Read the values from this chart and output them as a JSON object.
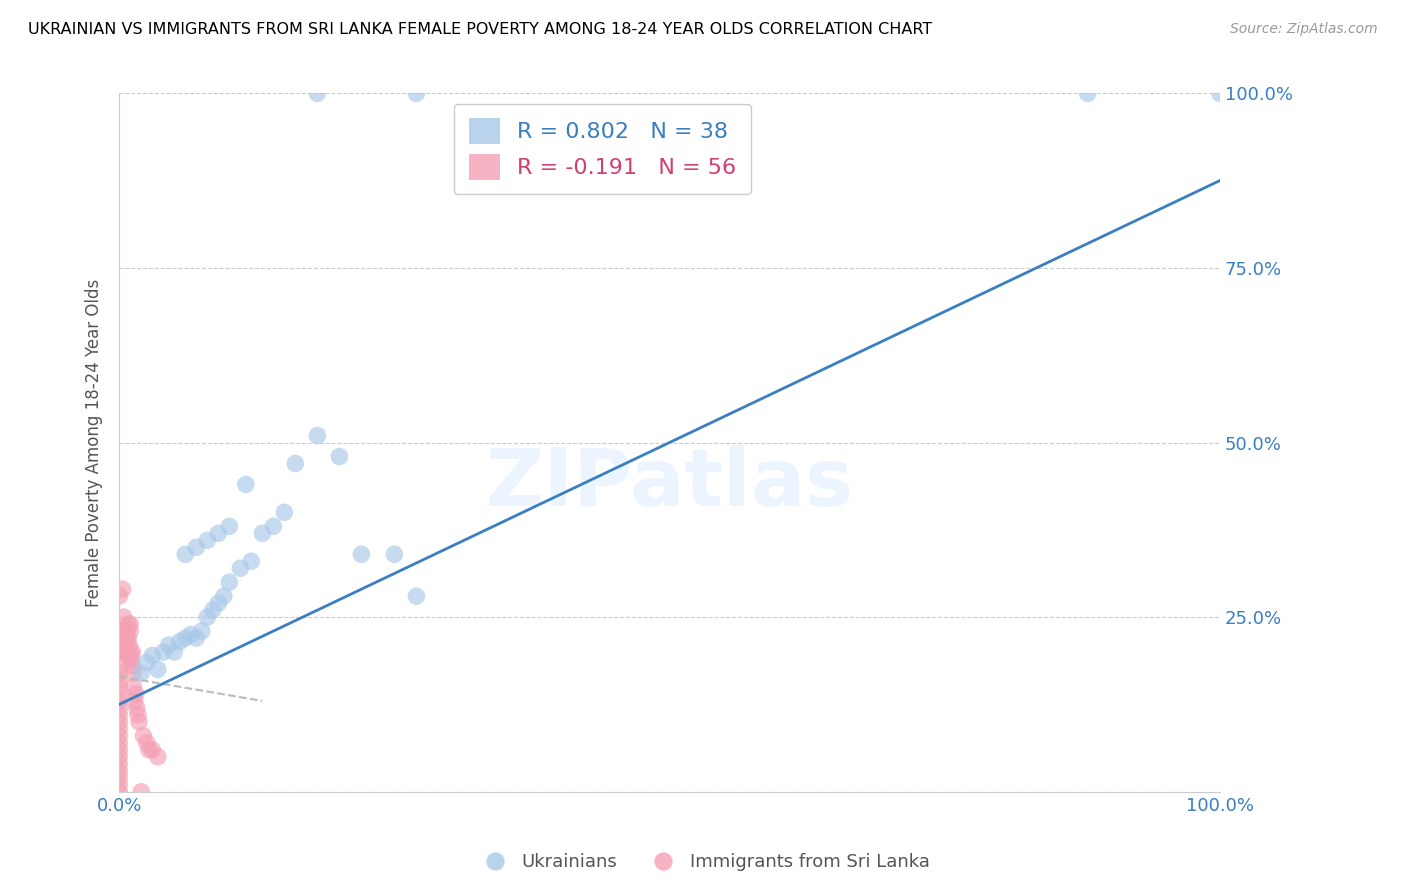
{
  "title": "UKRAINIAN VS IMMIGRANTS FROM SRI LANKA FEMALE POVERTY AMONG 18-24 YEAR OLDS CORRELATION CHART",
  "source": "Source: ZipAtlas.com",
  "ylabel": "Female Poverty Among 18-24 Year Olds",
  "legend_label_blue": "Ukrainians",
  "legend_label_pink": "Immigrants from Sri Lanka",
  "blue_color": "#a8c8e8",
  "pink_color": "#f4a0b5",
  "blue_line_color": "#3a7fc1",
  "pink_line_color": "#bbbbbb",
  "watermark_text": "ZIPatlas",
  "blue_R": 0.802,
  "blue_N": 38,
  "pink_R": -0.191,
  "pink_N": 56,
  "blue_x": [
    0.02,
    0.025,
    0.03,
    0.035,
    0.04,
    0.045,
    0.05,
    0.055,
    0.06,
    0.065,
    0.07,
    0.075,
    0.08,
    0.085,
    0.09,
    0.095,
    0.1,
    0.11,
    0.12,
    0.13,
    0.14,
    0.15,
    0.16,
    0.18,
    0.2,
    0.22,
    0.25,
    0.27,
    0.06,
    0.07,
    0.08,
    0.09,
    0.1,
    0.115,
    0.18,
    0.27,
    0.88,
    1.0
  ],
  "blue_y": [
    0.17,
    0.185,
    0.195,
    0.175,
    0.2,
    0.21,
    0.2,
    0.215,
    0.22,
    0.225,
    0.22,
    0.23,
    0.25,
    0.26,
    0.27,
    0.28,
    0.3,
    0.32,
    0.33,
    0.37,
    0.38,
    0.4,
    0.47,
    0.51,
    0.48,
    0.34,
    0.34,
    0.28,
    0.34,
    0.35,
    0.36,
    0.37,
    0.38,
    0.44,
    1.0,
    1.0,
    1.0,
    1.0
  ],
  "pink_x": [
    0.0,
    0.0,
    0.0,
    0.0,
    0.0,
    0.0,
    0.0,
    0.0,
    0.0,
    0.0,
    0.0,
    0.0,
    0.0,
    0.0,
    0.0,
    0.0,
    0.0,
    0.0,
    0.0,
    0.0,
    0.003,
    0.003,
    0.003,
    0.004,
    0.004,
    0.005,
    0.005,
    0.005,
    0.006,
    0.006,
    0.007,
    0.007,
    0.007,
    0.008,
    0.008,
    0.009,
    0.009,
    0.01,
    0.01,
    0.01,
    0.011,
    0.012,
    0.012,
    0.013,
    0.013,
    0.014,
    0.015,
    0.016,
    0.017,
    0.018,
    0.02,
    0.022,
    0.025,
    0.027,
    0.03,
    0.035
  ],
  "pink_y": [
    0.0,
    0.01,
    0.02,
    0.03,
    0.04,
    0.05,
    0.06,
    0.07,
    0.08,
    0.09,
    0.1,
    0.11,
    0.12,
    0.13,
    0.14,
    0.15,
    0.16,
    0.17,
    0.18,
    0.28,
    0.21,
    0.22,
    0.29,
    0.25,
    0.2,
    0.2,
    0.21,
    0.23,
    0.22,
    0.23,
    0.2,
    0.21,
    0.23,
    0.22,
    0.24,
    0.19,
    0.21,
    0.2,
    0.23,
    0.24,
    0.19,
    0.18,
    0.2,
    0.15,
    0.17,
    0.13,
    0.14,
    0.12,
    0.11,
    0.1,
    0.0,
    0.08,
    0.07,
    0.06,
    0.06,
    0.05
  ],
  "blue_line_x": [
    0.0,
    1.0
  ],
  "blue_line_y": [
    0.125,
    0.875
  ],
  "pink_line_x": [
    0.0,
    0.13
  ],
  "pink_line_y": [
    0.165,
    0.13
  ],
  "ytick_values": [
    0,
    0.25,
    0.5,
    0.75,
    1.0
  ],
  "ytick_labels_right": [
    "",
    "25.0%",
    "50.0%",
    "75.0%",
    "100.0%"
  ],
  "xtick_values": [
    0,
    1.0
  ],
  "xtick_labels": [
    "0.0%",
    "100.0%"
  ]
}
